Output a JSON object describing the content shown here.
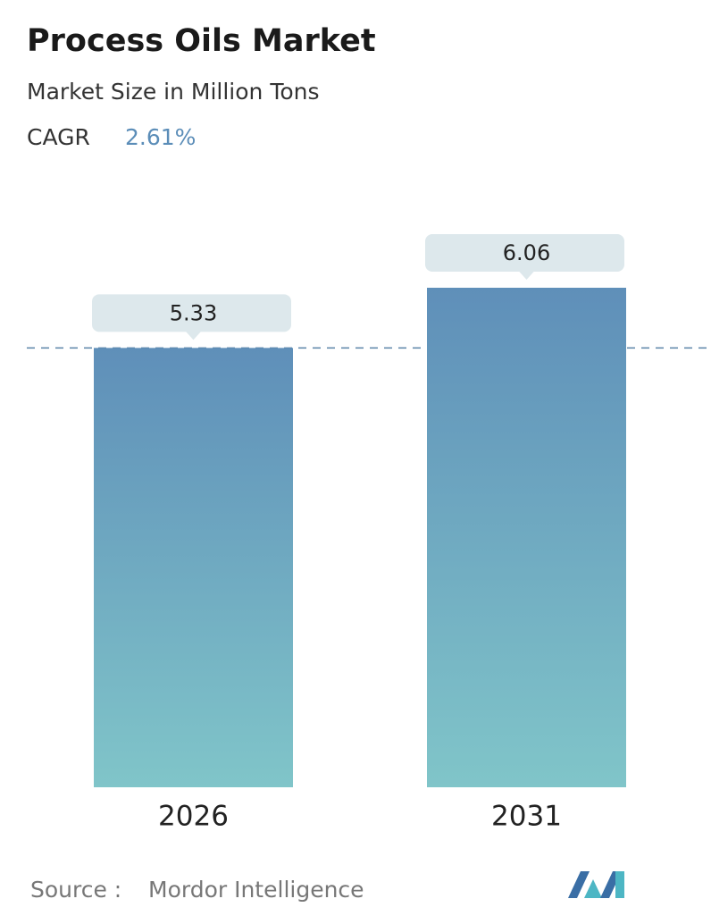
{
  "chart_data": {
    "type": "bar",
    "title": "Process Oils Market",
    "subtitle": "Market Size in Million Tons",
    "cagr_label": "CAGR",
    "cagr_value": "2.61%",
    "categories": [
      "2026",
      "2031"
    ],
    "values": [
      5.33,
      6.06
    ],
    "source_label": "Source :",
    "source": "Mordor Intelligence"
  }
}
